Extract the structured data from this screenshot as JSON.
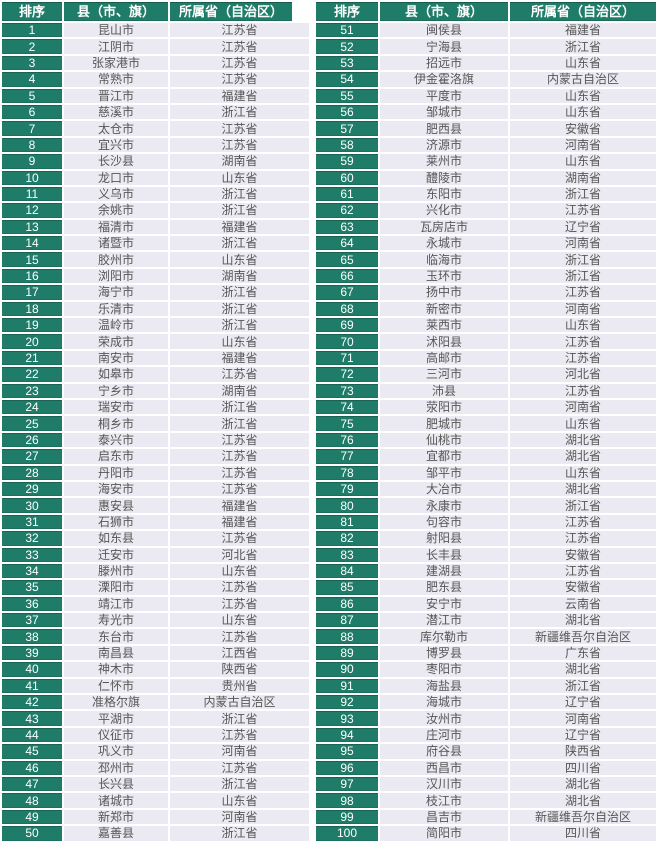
{
  "colors": {
    "accent_green": "#1f7c68",
    "cell_bg": "#ebeaf2",
    "cell_text": "#565656",
    "header_text": "#ffffff",
    "border_white": "#ffffff"
  },
  "table": {
    "headers": {
      "rank": "排序",
      "county": "县（市、旗）",
      "province": "所属省（自治区）"
    },
    "left_rows": [
      [
        "1",
        "昆山市",
        "江苏省"
      ],
      [
        "2",
        "江阴市",
        "江苏省"
      ],
      [
        "3",
        "张家港市",
        "江苏省"
      ],
      [
        "4",
        "常熟市",
        "江苏省"
      ],
      [
        "5",
        "晋江市",
        "福建省"
      ],
      [
        "6",
        "慈溪市",
        "浙江省"
      ],
      [
        "7",
        "太仓市",
        "江苏省"
      ],
      [
        "8",
        "宜兴市",
        "江苏省"
      ],
      [
        "9",
        "长沙县",
        "湖南省"
      ],
      [
        "10",
        "龙口市",
        "山东省"
      ],
      [
        "11",
        "义乌市",
        "浙江省"
      ],
      [
        "12",
        "余姚市",
        "浙江省"
      ],
      [
        "13",
        "福清市",
        "福建省"
      ],
      [
        "14",
        "诸暨市",
        "浙江省"
      ],
      [
        "15",
        "胶州市",
        "山东省"
      ],
      [
        "16",
        "浏阳市",
        "湖南省"
      ],
      [
        "17",
        "海宁市",
        "浙江省"
      ],
      [
        "18",
        "乐清市",
        "浙江省"
      ],
      [
        "19",
        "温岭市",
        "浙江省"
      ],
      [
        "20",
        "荣成市",
        "山东省"
      ],
      [
        "21",
        "南安市",
        "福建省"
      ],
      [
        "22",
        "如皋市",
        "江苏省"
      ],
      [
        "23",
        "宁乡市",
        "湖南省"
      ],
      [
        "24",
        "瑞安市",
        "浙江省"
      ],
      [
        "25",
        "桐乡市",
        "浙江省"
      ],
      [
        "26",
        "泰兴市",
        "江苏省"
      ],
      [
        "27",
        "启东市",
        "江苏省"
      ],
      [
        "28",
        "丹阳市",
        "江苏省"
      ],
      [
        "29",
        "海安市",
        "江苏省"
      ],
      [
        "30",
        "惠安县",
        "福建省"
      ],
      [
        "31",
        "石狮市",
        "福建省"
      ],
      [
        "32",
        "如东县",
        "江苏省"
      ],
      [
        "33",
        "迁安市",
        "河北省"
      ],
      [
        "34",
        "滕州市",
        "山东省"
      ],
      [
        "35",
        "溧阳市",
        "江苏省"
      ],
      [
        "36",
        "靖江市",
        "江苏省"
      ],
      [
        "37",
        "寿光市",
        "山东省"
      ],
      [
        "38",
        "东台市",
        "江苏省"
      ],
      [
        "39",
        "南昌县",
        "江西省"
      ],
      [
        "40",
        "神木市",
        "陕西省"
      ],
      [
        "41",
        "仁怀市",
        "贵州省"
      ],
      [
        "42",
        "准格尔旗",
        "内蒙古自治区"
      ],
      [
        "43",
        "平湖市",
        "浙江省"
      ],
      [
        "44",
        "仪征市",
        "江苏省"
      ],
      [
        "45",
        "巩义市",
        "河南省"
      ],
      [
        "46",
        "邳州市",
        "江苏省"
      ],
      [
        "47",
        "长兴县",
        "浙江省"
      ],
      [
        "48",
        "诸城市",
        "山东省"
      ],
      [
        "49",
        "新郑市",
        "河南省"
      ],
      [
        "50",
        "嘉善县",
        "浙江省"
      ]
    ],
    "right_rows": [
      [
        "51",
        "闽侯县",
        "福建省"
      ],
      [
        "52",
        "宁海县",
        "浙江省"
      ],
      [
        "53",
        "招远市",
        "山东省"
      ],
      [
        "54",
        "伊金霍洛旗",
        "内蒙古自治区"
      ],
      [
        "55",
        "平度市",
        "山东省"
      ],
      [
        "56",
        "邹城市",
        "山东省"
      ],
      [
        "57",
        "肥西县",
        "安徽省"
      ],
      [
        "58",
        "济源市",
        "河南省"
      ],
      [
        "59",
        "莱州市",
        "山东省"
      ],
      [
        "60",
        "醴陵市",
        "湖南省"
      ],
      [
        "61",
        "东阳市",
        "浙江省"
      ],
      [
        "62",
        "兴化市",
        "江苏省"
      ],
      [
        "63",
        "瓦房店市",
        "辽宁省"
      ],
      [
        "64",
        "永城市",
        "河南省"
      ],
      [
        "65",
        "临海市",
        "浙江省"
      ],
      [
        "66",
        "玉环市",
        "浙江省"
      ],
      [
        "67",
        "扬中市",
        "江苏省"
      ],
      [
        "68",
        "新密市",
        "河南省"
      ],
      [
        "69",
        "莱西市",
        "山东省"
      ],
      [
        "70",
        "沭阳县",
        "江苏省"
      ],
      [
        "71",
        "高邮市",
        "江苏省"
      ],
      [
        "72",
        "三河市",
        "河北省"
      ],
      [
        "73",
        "沛县",
        "江苏省"
      ],
      [
        "74",
        "荥阳市",
        "河南省"
      ],
      [
        "75",
        "肥城市",
        "山东省"
      ],
      [
        "76",
        "仙桃市",
        "湖北省"
      ],
      [
        "77",
        "宜都市",
        "湖北省"
      ],
      [
        "78",
        "邹平市",
        "山东省"
      ],
      [
        "79",
        "大冶市",
        "湖北省"
      ],
      [
        "80",
        "永康市",
        "浙江省"
      ],
      [
        "81",
        "句容市",
        "江苏省"
      ],
      [
        "82",
        "射阳县",
        "江苏省"
      ],
      [
        "83",
        "长丰县",
        "安徽省"
      ],
      [
        "84",
        "建湖县",
        "江苏省"
      ],
      [
        "85",
        "肥东县",
        "安徽省"
      ],
      [
        "86",
        "安宁市",
        "云南省"
      ],
      [
        "87",
        "潜江市",
        "湖北省"
      ],
      [
        "88",
        "库尔勒市",
        "新疆维吾尔自治区"
      ],
      [
        "89",
        "博罗县",
        "广东省"
      ],
      [
        "90",
        "枣阳市",
        "湖北省"
      ],
      [
        "91",
        "海盐县",
        "浙江省"
      ],
      [
        "92",
        "海城市",
        "辽宁省"
      ],
      [
        "93",
        "汝州市",
        "河南省"
      ],
      [
        "94",
        "庄河市",
        "辽宁省"
      ],
      [
        "95",
        "府谷县",
        "陕西省"
      ],
      [
        "96",
        "西昌市",
        "四川省"
      ],
      [
        "97",
        "汉川市",
        "湖北省"
      ],
      [
        "98",
        "枝江市",
        "湖北省"
      ],
      [
        "99",
        "昌吉市",
        "新疆维吾尔自治区"
      ],
      [
        "100",
        "简阳市",
        "四川省"
      ]
    ]
  }
}
